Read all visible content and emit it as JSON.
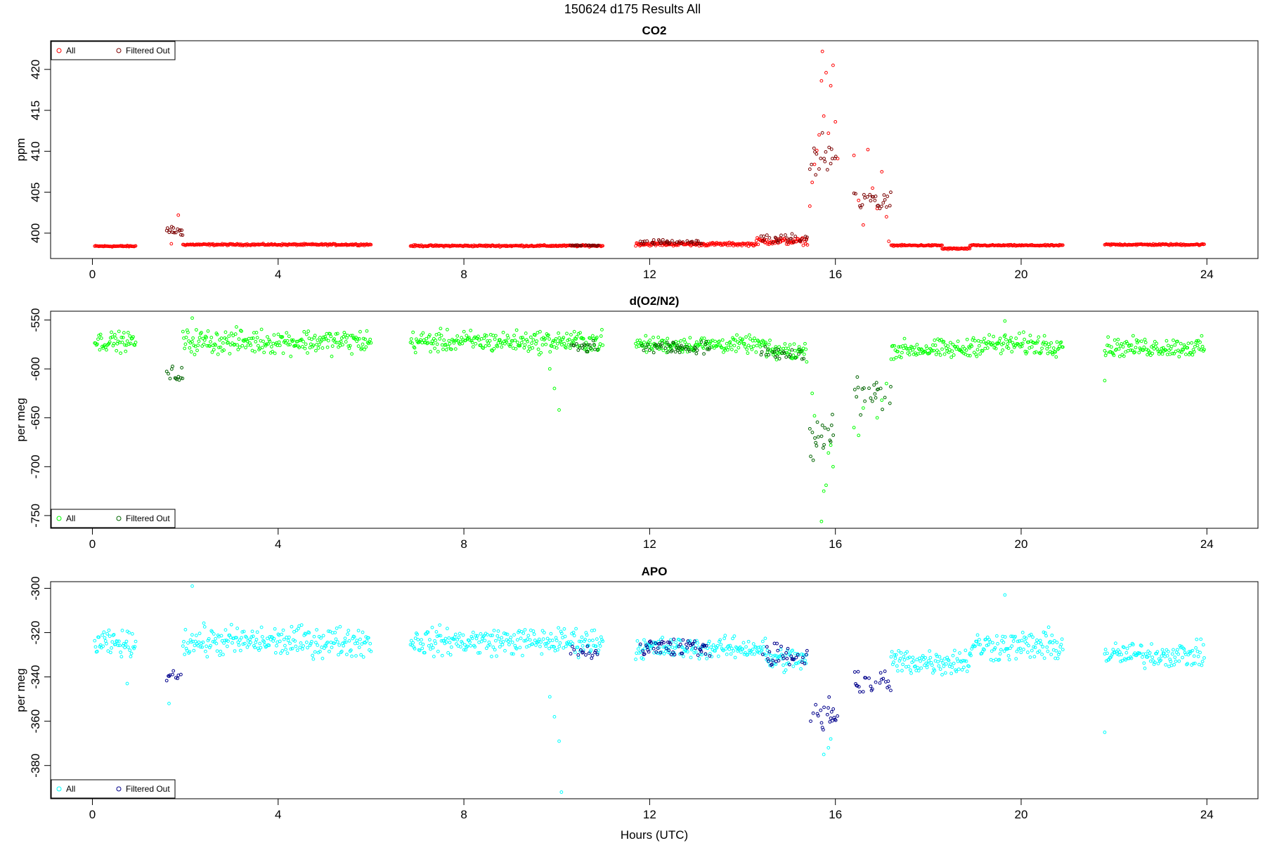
{
  "figure": {
    "title": "150624   d175   Results All"
  },
  "chart_data": [
    {
      "type": "scatter",
      "title": "CO2",
      "xlabel": "",
      "ylabel": "ppm",
      "xlim": [
        -0.9,
        25.1
      ],
      "ylim": [
        396.9,
        423.5
      ],
      "xticks": [
        0,
        4,
        8,
        12,
        16,
        20,
        24
      ],
      "xtick_labels": [
        "0",
        "4",
        "8",
        "12",
        "16",
        "20",
        "24"
      ],
      "yticks": [
        400,
        405,
        410,
        415,
        420
      ],
      "ytick_labels": [
        "400",
        "405",
        "410",
        "415",
        "420"
      ],
      "legend": {
        "placement": "top-left",
        "entries": [
          "All",
          "Filtered Out"
        ]
      },
      "colors": {
        "all": "#ff0000",
        "filtered": "#7a0000"
      },
      "series": [
        {
          "name": "All",
          "segments": [
            {
              "start": 0.05,
              "end": 0.95,
              "base": 398.4,
              "noise": 0.12
            },
            {
              "start": 1.95,
              "end": 6.0,
              "base": 398.6,
              "noise": 0.15
            },
            {
              "start": 6.85,
              "end": 11.0,
              "base": 398.45,
              "noise": 0.15
            },
            {
              "start": 11.7,
              "end": 14.3,
              "base": 398.65,
              "noise": 0.3
            },
            {
              "start": 14.3,
              "end": 15.4,
              "base": 399.0,
              "noise": 0.6
            },
            {
              "start": 17.2,
              "end": 18.3,
              "base": 398.5,
              "noise": 0.12
            },
            {
              "start": 18.3,
              "end": 18.9,
              "base": 398.1,
              "noise": 0.15
            },
            {
              "start": 18.9,
              "end": 20.9,
              "base": 398.5,
              "noise": 0.12
            },
            {
              "start": 21.8,
              "end": 23.95,
              "base": 398.6,
              "noise": 0.15
            }
          ],
          "points": [
            {
              "x": 15.45,
              "y": 403.3
            },
            {
              "x": 15.5,
              "y": 406.2
            },
            {
              "x": 15.55,
              "y": 408.4
            },
            {
              "x": 15.6,
              "y": 410.1
            },
            {
              "x": 15.65,
              "y": 412.0
            },
            {
              "x": 15.7,
              "y": 418.6
            },
            {
              "x": 15.72,
              "y": 422.2
            },
            {
              "x": 15.75,
              "y": 414.3
            },
            {
              "x": 15.8,
              "y": 419.6
            },
            {
              "x": 15.85,
              "y": 412.2
            },
            {
              "x": 15.9,
              "y": 418.0
            },
            {
              "x": 15.95,
              "y": 420.5
            },
            {
              "x": 16.0,
              "y": 413.6
            },
            {
              "x": 16.05,
              "y": 409.1
            },
            {
              "x": 16.4,
              "y": 409.5
            },
            {
              "x": 16.5,
              "y": 404.0
            },
            {
              "x": 16.6,
              "y": 401.0
            },
            {
              "x": 16.7,
              "y": 410.2
            },
            {
              "x": 16.8,
              "y": 405.5
            },
            {
              "x": 16.9,
              "y": 403.0
            },
            {
              "x": 17.0,
              "y": 407.5
            },
            {
              "x": 17.1,
              "y": 402.0
            },
            {
              "x": 17.15,
              "y": 399.0
            },
            {
              "x": 1.7,
              "y": 398.7
            },
            {
              "x": 1.85,
              "y": 402.2
            }
          ]
        },
        {
          "name": "Filtered Out",
          "segments": [
            {
              "start": 1.6,
              "end": 1.95,
              "base": 400.3,
              "noise": 1.0
            },
            {
              "start": 11.8,
              "end": 13.2,
              "base": 398.9,
              "noise": 0.4
            },
            {
              "start": 14.4,
              "end": 15.4,
              "base": 399.3,
              "noise": 0.7
            },
            {
              "start": 15.45,
              "end": 16.05,
              "base": 409.0,
              "noise": 4.0
            },
            {
              "start": 16.4,
              "end": 17.2,
              "base": 404.0,
              "noise": 2.6
            },
            {
              "start": 10.3,
              "end": 10.9,
              "base": 398.5,
              "noise": 0.1
            }
          ],
          "points": []
        }
      ]
    },
    {
      "type": "scatter",
      "title": "d(O2/N2)",
      "xlabel": "",
      "ylabel": "per meg",
      "xlim": [
        -0.9,
        25.1
      ],
      "ylim": [
        -763,
        -541
      ],
      "xticks": [
        0,
        4,
        8,
        12,
        16,
        20,
        24
      ],
      "xtick_labels": [
        "0",
        "4",
        "8",
        "12",
        "16",
        "20",
        "24"
      ],
      "yticks": [
        -750,
        -700,
        -650,
        -600,
        -550
      ],
      "ytick_labels": [
        "-750",
        "-700",
        "-650",
        "-600",
        "-550"
      ],
      "legend": {
        "placement": "bottom-left",
        "entries": [
          "All",
          "Filtered Out"
        ]
      },
      "colors": {
        "all": "#00ff00",
        "filtered": "#006400"
      },
      "series": [
        {
          "name": "All",
          "segments": [
            {
              "start": 0.05,
              "end": 0.95,
              "base": -572,
              "noise": 14
            },
            {
              "start": 1.95,
              "end": 6.0,
              "base": -572,
              "noise": 18
            },
            {
              "start": 6.85,
              "end": 11.0,
              "base": -572,
              "noise": 16
            },
            {
              "start": 11.7,
              "end": 14.5,
              "base": -575,
              "noise": 12
            },
            {
              "start": 14.5,
              "end": 15.4,
              "base": -582,
              "noise": 14
            },
            {
              "start": 17.2,
              "end": 18.9,
              "base": -580,
              "noise": 14
            },
            {
              "start": 18.9,
              "end": 20.9,
              "base": -575,
              "noise": 16
            },
            {
              "start": 21.8,
              "end": 23.95,
              "base": -578,
              "noise": 14
            }
          ],
          "points": [
            {
              "x": 9.85,
              "y": -600
            },
            {
              "x": 10.05,
              "y": -642
            },
            {
              "x": 9.95,
              "y": -620
            },
            {
              "x": 21.8,
              "y": -612
            },
            {
              "x": 19.65,
              "y": -551
            },
            {
              "x": 2.15,
              "y": -548
            },
            {
              "x": 15.7,
              "y": -756
            },
            {
              "x": 15.75,
              "y": -725
            },
            {
              "x": 15.8,
              "y": -719
            },
            {
              "x": 15.85,
              "y": -686
            },
            {
              "x": 15.9,
              "y": -678
            },
            {
              "x": 15.95,
              "y": -700
            },
            {
              "x": 15.55,
              "y": -648
            },
            {
              "x": 15.5,
              "y": -625
            },
            {
              "x": 16.5,
              "y": -668
            },
            {
              "x": 16.4,
              "y": -660
            },
            {
              "x": 16.6,
              "y": -640
            },
            {
              "x": 16.9,
              "y": -650
            },
            {
              "x": 17.0,
              "y": -632
            },
            {
              "x": 17.1,
              "y": -615
            }
          ]
        },
        {
          "name": "Filtered Out",
          "segments": [
            {
              "start": 1.6,
              "end": 1.95,
              "base": -606,
              "noise": 14
            },
            {
              "start": 11.8,
              "end": 13.3,
              "base": -578,
              "noise": 10
            },
            {
              "start": 14.4,
              "end": 15.4,
              "base": -585,
              "noise": 12
            },
            {
              "start": 15.45,
              "end": 16.05,
              "base": -675,
              "noise": 40
            },
            {
              "start": 16.4,
              "end": 17.2,
              "base": -625,
              "noise": 24
            },
            {
              "start": 10.3,
              "end": 10.9,
              "base": -578,
              "noise": 8
            }
          ],
          "points": []
        }
      ]
    },
    {
      "type": "scatter",
      "title": "APO",
      "xlabel": "Hours (UTC)",
      "ylabel": "per meg",
      "xlim": [
        -0.9,
        25.1
      ],
      "ylim": [
        -395,
        -297
      ],
      "xticks": [
        0,
        4,
        8,
        12,
        16,
        20,
        24
      ],
      "xtick_labels": [
        "0",
        "4",
        "8",
        "12",
        "16",
        "20",
        "24"
      ],
      "yticks": [
        -380,
        -360,
        -340,
        -320,
        -300
      ],
      "ytick_labels": [
        "-380",
        "-360",
        "-340",
        "-320",
        "-300"
      ],
      "legend": {
        "placement": "bottom-left",
        "entries": [
          "All",
          "Filtered Out"
        ]
      },
      "colors": {
        "all": "#00ffff",
        "filtered": "#00008b"
      },
      "series": [
        {
          "name": "All",
          "segments": [
            {
              "start": 0.05,
              "end": 0.95,
              "base": -325,
              "noise": 8
            },
            {
              "start": 1.95,
              "end": 6.0,
              "base": -324,
              "noise": 10
            },
            {
              "start": 6.85,
              "end": 11.0,
              "base": -324,
              "noise": 9
            },
            {
              "start": 11.7,
              "end": 14.5,
              "base": -327,
              "noise": 7
            },
            {
              "start": 14.5,
              "end": 15.4,
              "base": -332,
              "noise": 8
            },
            {
              "start": 17.2,
              "end": 18.9,
              "base": -333,
              "noise": 9
            },
            {
              "start": 18.9,
              "end": 20.9,
              "base": -326,
              "noise": 10
            },
            {
              "start": 21.8,
              "end": 23.95,
              "base": -330,
              "noise": 8
            }
          ],
          "points": [
            {
              "x": 9.95,
              "y": -358
            },
            {
              "x": 10.05,
              "y": -369
            },
            {
              "x": 10.1,
              "y": -392
            },
            {
              "x": 9.85,
              "y": -349
            },
            {
              "x": 21.8,
              "y": -365
            },
            {
              "x": 19.65,
              "y": -303
            },
            {
              "x": 2.15,
              "y": -299
            },
            {
              "x": 0.75,
              "y": -343
            },
            {
              "x": 1.65,
              "y": -352
            },
            {
              "x": 15.75,
              "y": -375
            },
            {
              "x": 15.85,
              "y": -372
            },
            {
              "x": 15.9,
              "y": -368
            }
          ]
        },
        {
          "name": "Filtered Out",
          "segments": [
            {
              "start": 1.6,
              "end": 1.95,
              "base": -340,
              "noise": 7
            },
            {
              "start": 11.8,
              "end": 13.3,
              "base": -327,
              "noise": 7
            },
            {
              "start": 14.4,
              "end": 15.4,
              "base": -330,
              "noise": 8
            },
            {
              "start": 15.45,
              "end": 16.05,
              "base": -358,
              "noise": 12
            },
            {
              "start": 16.4,
              "end": 17.2,
              "base": -342,
              "noise": 9
            },
            {
              "start": 10.3,
              "end": 10.9,
              "base": -328,
              "noise": 5
            }
          ],
          "points": []
        }
      ]
    }
  ]
}
